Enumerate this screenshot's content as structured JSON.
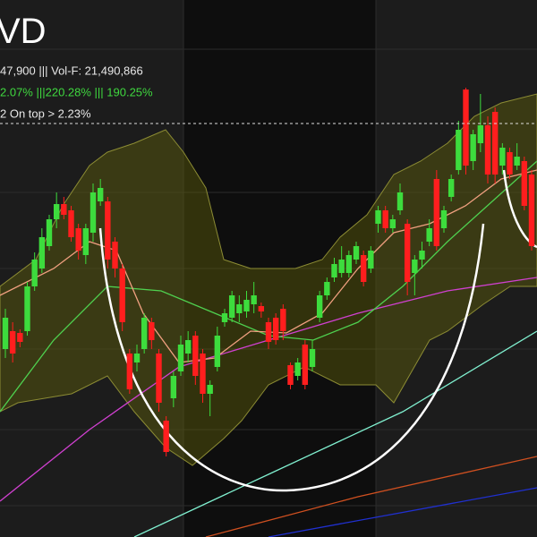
{
  "chart_data": {
    "type": "candlestick",
    "title": "VD",
    "info_line_1": "47,900  |||  Vol-F: 21,490,866",
    "info_line_2": "2.07%  |||220.28%  |||  190.25%",
    "info_line_3": "2   On top > 2.23%",
    "ylim": [
      0,
      600
    ],
    "up_color": "#3ddc3d",
    "down_color": "#ff1e1e",
    "series": {
      "open": [
        210,
        230,
        228,
        230,
        280,
        300,
        325,
        355,
        372,
        365,
        345,
        315,
        340,
        375,
        375,
        330,
        300,
        205,
        195,
        210,
        240,
        205,
        130,
        155,
        185,
        205,
        225,
        205,
        160,
        190,
        240,
        245,
        250,
        252,
        260,
        258,
        240,
        245,
        255,
        192,
        180,
        215,
        190,
        245,
        270,
        290,
        295,
        295,
        310,
        315,
        300,
        350,
        365,
        345,
        365,
        350,
        295,
        310,
        330,
        400,
        345,
        380,
        410,
        500,
        420,
        440,
        460,
        475,
        415,
        430,
        415,
        420,
        405
      ],
      "close": [
        245,
        205,
        218,
        280,
        310,
        335,
        355,
        372,
        360,
        335,
        320,
        345,
        385,
        390,
        310,
        300,
        240,
        165,
        205,
        245,
        220,
        150,
        95,
        180,
        215,
        220,
        180,
        160,
        170,
        225,
        250,
        270,
        260,
        265,
        270,
        252,
        218,
        220,
        230,
        170,
        195,
        170,
        210,
        270,
        285,
        305,
        310,
        315,
        325,
        285,
        320,
        365,
        345,
        355,
        385,
        285,
        310,
        320,
        345,
        325,
        365,
        400,
        455,
        415,
        450,
        460,
        405,
        405,
        435,
        405,
        425,
        370,
        325
      ],
      "high": [
        255,
        240,
        232,
        285,
        318,
        345,
        360,
        385,
        380,
        370,
        350,
        350,
        395,
        400,
        380,
        335,
        305,
        210,
        215,
        250,
        245,
        210,
        135,
        185,
        225,
        230,
        230,
        210,
        175,
        235,
        255,
        275,
        270,
        275,
        285,
        262,
        245,
        250,
        260,
        195,
        200,
        220,
        220,
        275,
        290,
        312,
        325,
        320,
        330,
        320,
        325,
        370,
        370,
        360,
        395,
        355,
        315,
        330,
        355,
        410,
        370,
        405,
        465,
        502,
        455,
        495,
        470,
        480,
        440,
        435,
        440,
        425,
        410
      ],
      "low": [
        200,
        195,
        212,
        225,
        275,
        295,
        320,
        345,
        355,
        330,
        310,
        305,
        330,
        370,
        300,
        290,
        230,
        160,
        185,
        205,
        210,
        140,
        90,
        145,
        180,
        195,
        170,
        150,
        135,
        185,
        235,
        240,
        240,
        245,
        250,
        245,
        210,
        215,
        220,
        165,
        175,
        165,
        185,
        240,
        265,
        285,
        290,
        290,
        305,
        280,
        295,
        340,
        340,
        340,
        360,
        270,
        270,
        300,
        325,
        320,
        340,
        375,
        405,
        405,
        410,
        430,
        395,
        395,
        405,
        400,
        410,
        365,
        320
      ]
    }
  }
}
